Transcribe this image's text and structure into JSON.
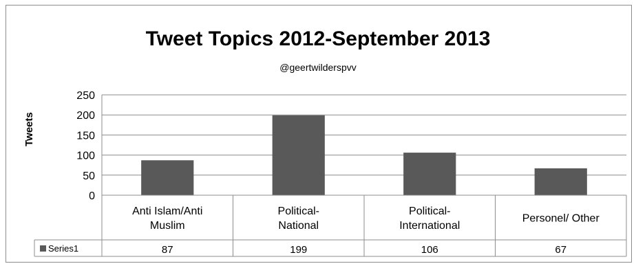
{
  "chart_data": {
    "type": "bar",
    "title": "Tweet Topics 2012-September 2013",
    "subtitle": "@geertwilderspvv",
    "xlabel": "",
    "ylabel": "Tweets",
    "ylim": [
      0,
      250
    ],
    "yticks": [
      0,
      50,
      100,
      150,
      200,
      250
    ],
    "grid": true,
    "legend": "data-table",
    "categories": [
      [
        "Anti Islam/Anti",
        "Muslim"
      ],
      [
        "Political-",
        "National"
      ],
      [
        "Political-",
        "International"
      ],
      [
        "Personel/ Other"
      ]
    ],
    "series": [
      {
        "name": "Series1",
        "values": [
          87,
          199,
          106,
          67
        ],
        "color": "#595959"
      }
    ]
  }
}
